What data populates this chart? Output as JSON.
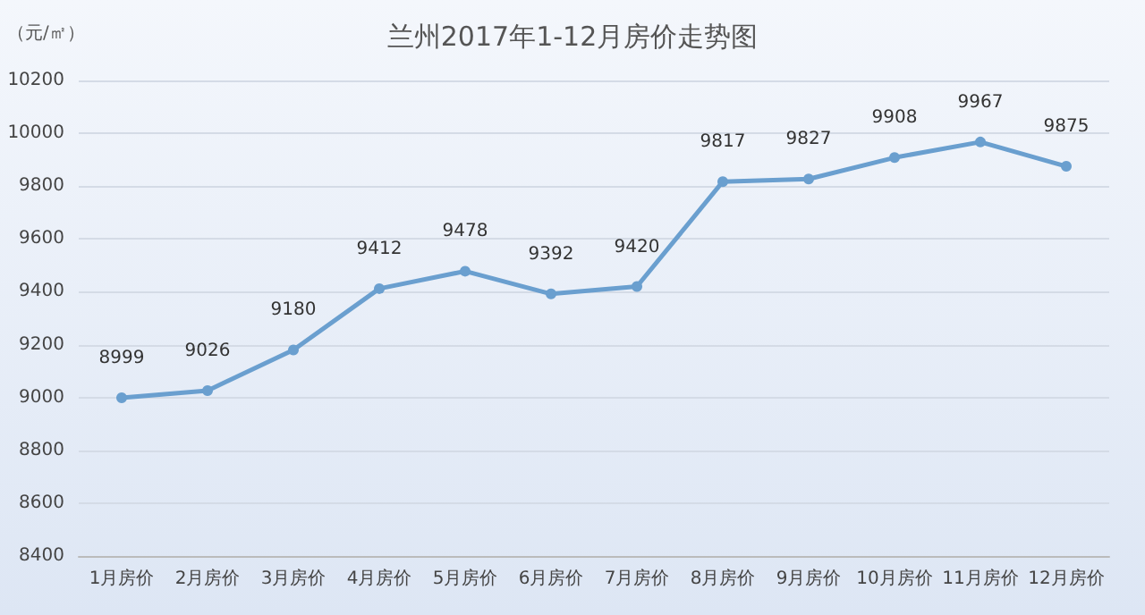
{
  "chart_data": {
    "type": "line",
    "title": "兰州2017年1-12月房价走势图",
    "ylabel": "（元/㎡）",
    "categories": [
      "1月房价",
      "2月房价",
      "3月房价",
      "4月房价",
      "5月房价",
      "6月房价",
      "7月房价",
      "8月房价",
      "9月房价",
      "10月房价",
      "11月房价",
      "12月房价"
    ],
    "series": [
      {
        "color": "#6a9fcf",
        "values": [
          8999,
          9026,
          9180,
          9412,
          9478,
          9392,
          9420,
          9817,
          9827,
          9908,
          9967,
          9875
        ]
      }
    ],
    "ylim": [
      8400,
      10200
    ],
    "yticks": [
      8400,
      8600,
      8800,
      9000,
      9200,
      9400,
      9600,
      9800,
      10000,
      10200
    ],
    "grid": "y",
    "data_labels": true,
    "marker": "circle",
    "line_style": "solid"
  }
}
